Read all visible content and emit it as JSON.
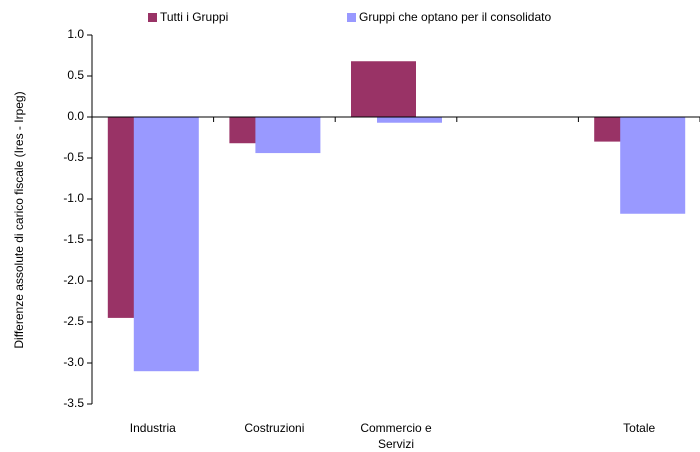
{
  "chart_data": {
    "type": "bar",
    "y_label": "Differenze assolute di carico fiscale (Ires - Irpeg)",
    "categories": [
      "Industria",
      "Costruzioni",
      "Commercio e Servizi",
      null,
      "Totale"
    ],
    "series": [
      {
        "name": "Tutti i Gruppi",
        "color": "#993366",
        "values": [
          -2.45,
          -0.32,
          0.68,
          null,
          -0.3
        ]
      },
      {
        "name": "Gruppi che optano per il consolidato",
        "color": "#9999ff",
        "values": [
          -3.1,
          -0.44,
          -0.07,
          null,
          -1.18
        ]
      }
    ],
    "ylim": [
      -3.5,
      1.0
    ],
    "yticks": [
      {
        "value": -3.5,
        "label": "-3.5"
      },
      {
        "value": -3.0,
        "label": "-3.0"
      },
      -2.5,
      {
        "value": -2.0,
        "label": "-2.0"
      },
      -1.5,
      {
        "value": -1.0,
        "label": "-1.0"
      },
      -0.5,
      {
        "value": 0.0,
        "label": "0.0"
      },
      0.5,
      {
        "value": 1.0,
        "label": "1.0"
      }
    ],
    "legend": "top",
    "grid": false
  }
}
